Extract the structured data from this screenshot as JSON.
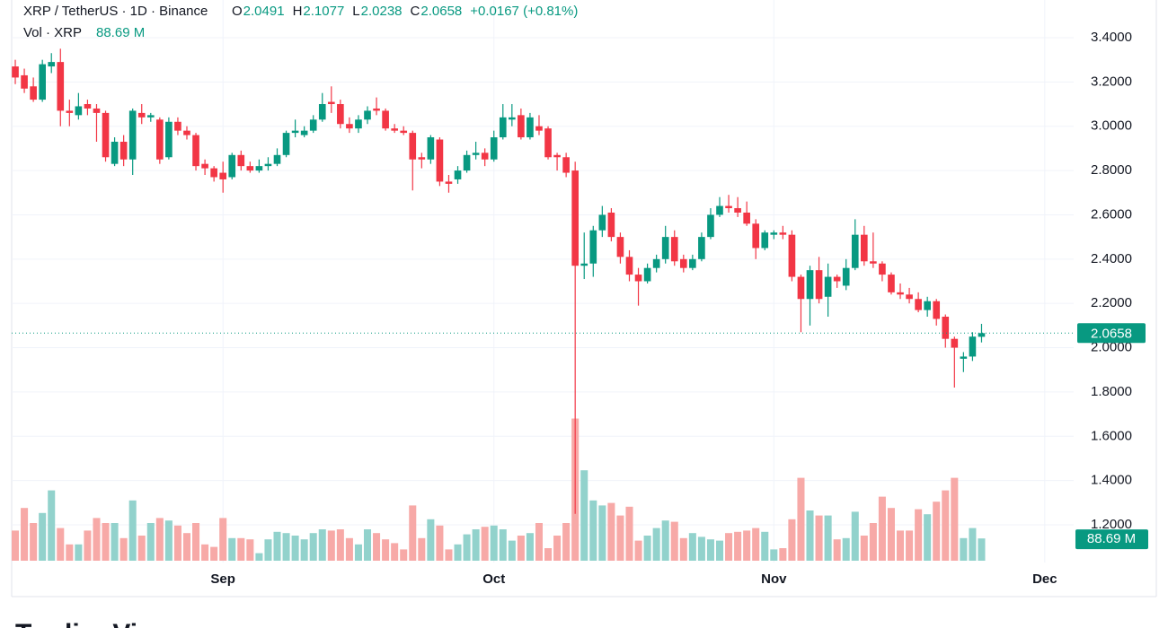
{
  "chart_data": {
    "type": "candlestick",
    "title": "XRP / TetherUS · 1D · Binance",
    "ohlc_letters": [
      "O",
      "H",
      "L",
      "C"
    ],
    "change_label": "+0.0167 (+0.81%)",
    "volume_title": "Vol · XRP",
    "volume_label": "88.69 M",
    "up_color": "#089981",
    "down_color": "#f23645",
    "volume_up_color": "#92d2cc",
    "volume_down_color": "#f7a9a7",
    "grid": true,
    "ylim": [
      1.03,
      3.57
    ],
    "yticks": [
      {
        "value": 1.2,
        "label": "1.2000"
      },
      {
        "value": 1.4,
        "label": "1.4000"
      },
      {
        "value": 1.6,
        "label": "1.6000"
      },
      {
        "value": 1.8,
        "label": "1.8000"
      },
      {
        "value": 2.0,
        "label": "2.0000"
      },
      {
        "value": 2.2,
        "label": "2.2000"
      },
      {
        "value": 2.4,
        "label": "2.4000"
      },
      {
        "value": 2.6,
        "label": "2.6000"
      },
      {
        "value": 2.8,
        "label": "2.8000"
      },
      {
        "value": 3.0,
        "label": "3.0000"
      },
      {
        "value": 3.2,
        "label": "3.2000"
      },
      {
        "value": 3.4,
        "label": "3.4000"
      }
    ],
    "xlim": [
      -0.4,
      117.2
    ],
    "categories": [
      null,
      null,
      null,
      null,
      null,
      null,
      null,
      null,
      null,
      null,
      null,
      null,
      null,
      null,
      null,
      null,
      null,
      null,
      null,
      null,
      null,
      null,
      null,
      "Sep",
      null,
      null,
      null,
      null,
      null,
      null,
      null,
      null,
      null,
      null,
      null,
      null,
      null,
      null,
      null,
      null,
      null,
      null,
      null,
      null,
      null,
      null,
      null,
      null,
      null,
      null,
      null,
      null,
      null,
      "Oct",
      null,
      null,
      null,
      null,
      null,
      null,
      null,
      null,
      null,
      null,
      null,
      null,
      null,
      null,
      null,
      null,
      null,
      null,
      null,
      null,
      null,
      null,
      null,
      null,
      null,
      null,
      null,
      null,
      null,
      null,
      "Nov",
      null,
      null,
      null,
      null,
      null,
      null,
      null,
      null,
      null,
      null,
      null,
      null,
      null,
      null,
      null,
      null,
      null,
      null,
      null,
      null,
      null,
      null,
      null,
      null,
      null,
      null,
      null,
      null,
      null,
      "Dec"
    ],
    "open": [
      3.27,
      3.23,
      3.18,
      3.12,
      3.27,
      3.29,
      3.07,
      3.05,
      3.1,
      3.08,
      3.06,
      2.83,
      2.93,
      2.85,
      3.06,
      3.04,
      3.03,
      2.86,
      3.02,
      2.98,
      2.96,
      2.83,
      2.81,
      2.79,
      2.77,
      2.87,
      2.82,
      2.8,
      2.82,
      2.83,
      2.87,
      2.97,
      2.96,
      2.98,
      3.03,
      3.11,
      3.1,
      3.01,
      2.99,
      3.03,
      3.08,
      3.07,
      2.99,
      2.98,
      2.97,
      2.86,
      2.85,
      2.94,
      2.75,
      2.76,
      2.8,
      2.87,
      2.88,
      2.85,
      2.95,
      3.03,
      3.05,
      2.95,
      3.0,
      2.99,
      2.87,
      2.86,
      2.8,
      2.37,
      2.38,
      2.53,
      2.61,
      2.5,
      2.41,
      2.33,
      2.3,
      2.36,
      2.4,
      2.5,
      2.4,
      2.36,
      2.4,
      2.5,
      2.6,
      2.64,
      2.63,
      2.61,
      2.56,
      2.45,
      2.51,
      2.52,
      2.51,
      2.32,
      2.22,
      2.35,
      2.23,
      2.32,
      2.28,
      2.36,
      2.51,
      2.39,
      2.38,
      2.33,
      2.25,
      2.24,
      2.22,
      2.17,
      2.21,
      2.14,
      2.04,
      1.95,
      1.96,
      2.0491,
      null,
      null,
      null,
      null,
      null,
      null,
      null
    ],
    "high": [
      3.3,
      3.26,
      3.22,
      3.3,
      3.33,
      3.35,
      3.12,
      3.15,
      3.12,
      3.1,
      3.07,
      2.95,
      2.96,
      3.08,
      3.1,
      3.06,
      3.04,
      3.04,
      3.04,
      3.0,
      2.97,
      2.85,
      2.82,
      2.84,
      2.88,
      2.89,
      2.84,
      2.85,
      2.86,
      2.9,
      2.98,
      3.03,
      3.0,
      3.05,
      3.15,
      3.18,
      3.12,
      3.04,
      3.05,
      3.09,
      3.13,
      3.08,
      3.01,
      3.0,
      2.98,
      2.88,
      2.96,
      2.95,
      2.78,
      2.82,
      2.89,
      2.93,
      2.9,
      2.98,
      3.1,
      3.1,
      3.08,
      3.06,
      3.05,
      3.0,
      2.88,
      2.88,
      2.84,
      2.52,
      2.55,
      2.64,
      2.63,
      2.52,
      2.44,
      2.36,
      2.38,
      2.42,
      2.55,
      2.53,
      2.42,
      2.42,
      2.52,
      2.63,
      2.68,
      2.69,
      2.68,
      2.66,
      2.58,
      2.53,
      2.53,
      2.55,
      2.53,
      2.33,
      2.37,
      2.41,
      2.38,
      2.33,
      2.4,
      2.58,
      2.55,
      2.52,
      2.39,
      2.34,
      2.29,
      2.27,
      2.25,
      2.23,
      2.22,
      2.15,
      2.05,
      1.98,
      2.07,
      2.1077,
      null,
      null,
      null,
      null,
      null,
      null,
      null
    ],
    "low": [
      3.19,
      3.15,
      3.11,
      3.11,
      3.24,
      3.0,
      3.0,
      3.03,
      3.05,
      2.93,
      2.84,
      2.82,
      2.82,
      2.78,
      3.01,
      3.02,
      2.83,
      2.85,
      2.96,
      2.94,
      2.8,
      2.78,
      2.75,
      2.7,
      2.76,
      2.8,
      2.79,
      2.79,
      2.8,
      2.82,
      2.86,
      2.95,
      2.95,
      2.97,
      3.02,
      3.06,
      2.99,
      2.97,
      2.97,
      3.01,
      3.05,
      2.98,
      2.97,
      2.96,
      2.71,
      2.81,
      2.83,
      2.73,
      2.7,
      2.74,
      2.79,
      2.85,
      2.82,
      2.84,
      2.94,
      3.0,
      2.94,
      2.94,
      2.96,
      2.85,
      2.8,
      2.77,
      1.25,
      2.31,
      2.32,
      2.5,
      2.48,
      2.38,
      2.3,
      2.19,
      2.29,
      2.34,
      2.38,
      2.37,
      2.34,
      2.35,
      2.39,
      2.49,
      2.59,
      2.61,
      2.59,
      2.55,
      2.4,
      2.44,
      2.49,
      2.49,
      2.3,
      2.07,
      2.1,
      2.2,
      2.14,
      2.27,
      2.26,
      2.35,
      2.37,
      2.36,
      2.3,
      2.24,
      2.22,
      2.2,
      2.16,
      2.14,
      2.1,
      2.0,
      1.82,
      1.89,
      1.94,
      2.0238,
      null,
      null,
      null,
      null,
      null,
      null,
      null
    ],
    "close": [
      3.22,
      3.17,
      3.12,
      3.28,
      3.29,
      3.07,
      3.06,
      3.09,
      3.08,
      3.06,
      2.86,
      2.93,
      2.85,
      3.07,
      3.04,
      3.05,
      2.85,
      3.02,
      2.98,
      2.96,
      2.82,
      2.81,
      2.77,
      2.76,
      2.87,
      2.82,
      2.8,
      2.82,
      2.83,
      2.87,
      2.97,
      2.98,
      2.98,
      3.03,
      3.1,
      3.1,
      3.01,
      2.99,
      3.03,
      3.07,
      3.07,
      2.99,
      2.98,
      2.97,
      2.85,
      2.85,
      2.95,
      2.75,
      2.74,
      2.8,
      2.87,
      2.88,
      2.85,
      2.95,
      3.04,
      3.04,
      2.95,
      3.04,
      2.98,
      2.86,
      2.86,
      2.79,
      2.37,
      2.38,
      2.53,
      2.6,
      2.5,
      2.41,
      2.33,
      2.3,
      2.36,
      2.4,
      2.5,
      2.39,
      2.36,
      2.4,
      2.5,
      2.6,
      2.64,
      2.63,
      2.61,
      2.56,
      2.45,
      2.52,
      2.52,
      2.51,
      2.32,
      2.22,
      2.35,
      2.22,
      2.32,
      2.3,
      2.36,
      2.51,
      2.39,
      2.38,
      2.33,
      2.25,
      2.24,
      2.22,
      2.17,
      2.21,
      2.13,
      2.04,
      2.0,
      1.96,
      2.05,
      2.0658,
      null,
      null,
      null,
      null,
      null,
      null,
      null
    ],
    "volume": [
      120,
      210,
      150,
      190,
      280,
      130,
      65,
      65,
      120,
      170,
      150,
      150,
      90,
      240,
      100,
      150,
      170,
      160,
      140,
      110,
      150,
      65,
      55,
      170,
      90,
      90,
      85,
      30,
      85,
      115,
      110,
      100,
      85,
      110,
      125,
      120,
      125,
      90,
      65,
      125,
      110,
      85,
      70,
      45,
      220,
      90,
      165,
      140,
      45,
      65,
      105,
      125,
      135,
      140,
      125,
      80,
      100,
      110,
      150,
      50,
      100,
      150,
      566,
      360,
      240,
      220,
      230,
      180,
      215,
      80,
      100,
      130,
      160,
      155,
      90,
      110,
      95,
      85,
      80,
      110,
      115,
      120,
      130,
      115,
      45,
      50,
      165,
      330,
      200,
      180,
      180,
      85,
      90,
      195,
      100,
      150,
      255,
      210,
      120,
      120,
      205,
      185,
      235,
      280,
      330,
      90,
      130,
      88.69,
      null,
      null,
      null,
      null,
      null,
      null,
      null
    ],
    "brand": "TradingView"
  }
}
